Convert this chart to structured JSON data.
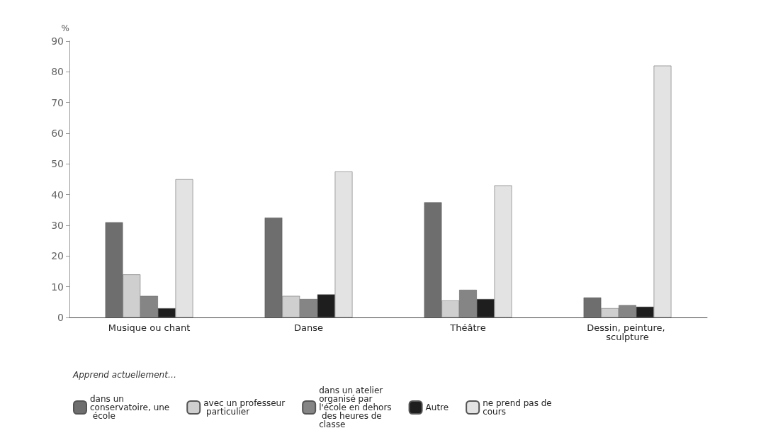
{
  "chart_data": {
    "type": "bar",
    "ylabel": "%",
    "legend_title": "Apprend actuellement…",
    "legend": "bottom",
    "grid": false,
    "categories": [
      "Musique ou chant",
      "Danse",
      "Théâtre",
      "Dessin, peinture, sculpture"
    ],
    "ylim": [
      0,
      90
    ],
    "yticks": [
      0,
      10,
      20,
      30,
      40,
      50,
      60,
      70,
      80,
      90
    ],
    "series": [
      {
        "name": "dans un conservatoire, une école",
        "color": "#6e6e6e",
        "values": [
          31,
          32.5,
          37.5,
          6.5
        ]
      },
      {
        "name": "avec un professeur particulier",
        "color": "#cfcfcf",
        "values": [
          14,
          7,
          5.5,
          3
        ]
      },
      {
        "name": "dans un atelier organisé par l'école en dehors des heures de classe",
        "color": "#858585",
        "values": [
          7,
          6,
          9,
          4
        ]
      },
      {
        "name": "Autre",
        "color": "#1e1e1e",
        "values": [
          3,
          7.5,
          6,
          3.5
        ]
      },
      {
        "name": "ne prend pas de cours",
        "color": "#e3e3e3",
        "values": [
          45,
          47.5,
          43,
          82
        ]
      }
    ]
  }
}
